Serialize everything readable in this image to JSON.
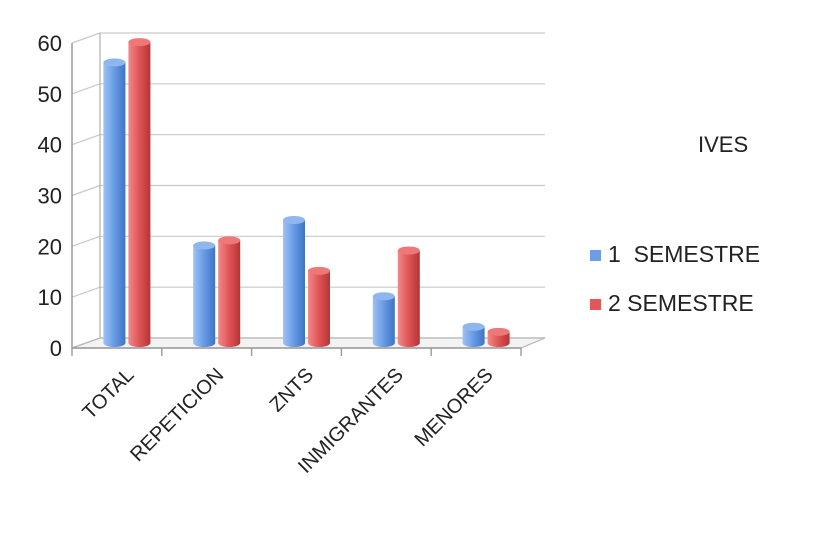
{
  "chart_data": {
    "type": "bar",
    "title": "",
    "xlabel": "",
    "ylabel": "",
    "categories": [
      "TOTAL",
      "REPETICION",
      "ZNTS",
      "INMIGRANTES",
      "MENORES"
    ],
    "series": [
      {
        "name": "1  SEMESTRE",
        "values": [
          55,
          19,
          24,
          9,
          3
        ],
        "color": "#6b9ee6"
      },
      {
        "name": "2 SEMESTRE",
        "values": [
          59,
          20,
          14,
          18,
          2
        ],
        "color": "#e2585a"
      }
    ],
    "ylim": [
      0,
      60
    ],
    "yticks": [
      0,
      10,
      20,
      30,
      40,
      50,
      60
    ],
    "grid": true,
    "legend_position": "right",
    "legend_title": "IVES"
  }
}
